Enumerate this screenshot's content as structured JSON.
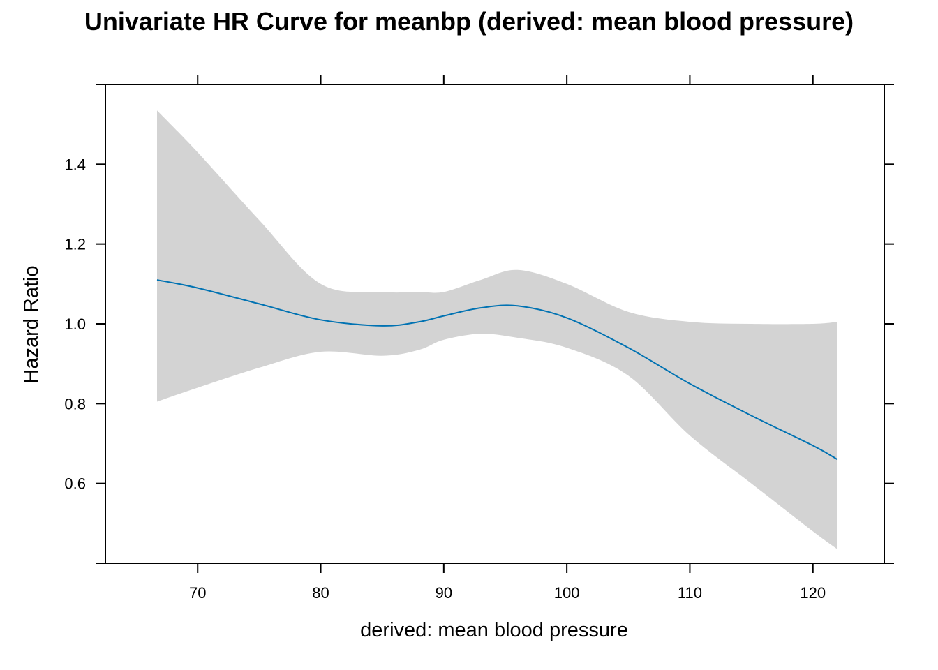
{
  "chart_data": {
    "type": "line",
    "title": "Univariate HR Curve for meanbp (derived: mean blood pressure)",
    "xlabel": "derived: mean blood pressure",
    "ylabel": "Hazard Ratio",
    "xlim": [
      62.5,
      125.8
    ],
    "ylim": [
      0.4,
      1.6
    ],
    "x_ticks": [
      70,
      80,
      90,
      100,
      110,
      120
    ],
    "y_ticks": [
      0.6,
      0.8,
      1.0,
      1.2,
      1.4
    ],
    "x_tick_labels": [
      "70",
      "80",
      "90",
      "100",
      "110",
      "120"
    ],
    "y_tick_labels": [
      "0.6",
      "0.8",
      "1.0",
      "1.2",
      "1.4"
    ],
    "grid": false,
    "colors": {
      "line": "#0072B2",
      "band": "#D3D3D3",
      "frame": "#000000"
    },
    "series": [
      {
        "x": [
          66.7,
          70,
          75,
          80,
          85,
          88,
          90,
          93,
          96,
          100,
          105,
          110,
          115,
          120,
          122
        ],
        "y": [
          1.11,
          1.09,
          1.05,
          1.01,
          0.995,
          1.005,
          1.02,
          1.04,
          1.045,
          1.015,
          0.94,
          0.85,
          0.77,
          0.695,
          0.66
        ],
        "lower": [
          0.805,
          0.84,
          0.89,
          0.93,
          0.92,
          0.935,
          0.96,
          0.975,
          0.965,
          0.94,
          0.87,
          0.72,
          0.6,
          0.48,
          0.435
        ],
        "upper": [
          1.535,
          1.43,
          1.26,
          1.1,
          1.08,
          1.08,
          1.08,
          1.11,
          1.135,
          1.1,
          1.03,
          1.005,
          1.0,
          1.0,
          1.005
        ]
      }
    ]
  }
}
